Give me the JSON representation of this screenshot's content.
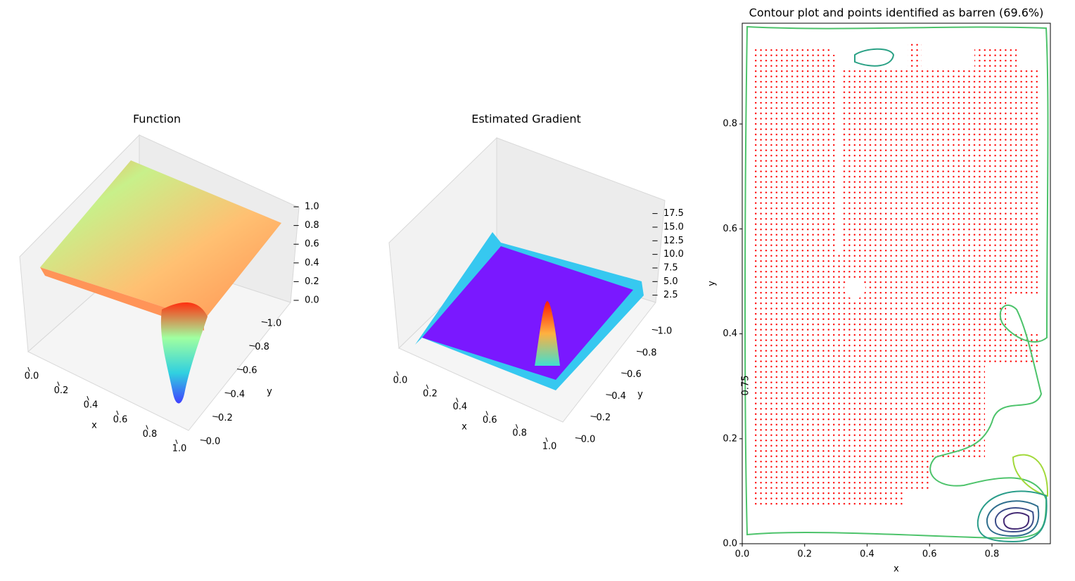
{
  "chart_data": [
    {
      "type": "surface",
      "title": "Function",
      "xlabel": "x",
      "ylabel": "y",
      "xlim": [
        0,
        1
      ],
      "ylim": [
        0,
        1
      ],
      "zlim": [
        0,
        1
      ],
      "xticks": [
        {
          "value": 0,
          "label": "0.0"
        },
        0.2,
        0.4,
        0.6,
        0.8,
        {
          "value": 1,
          "label": "1.0"
        }
      ],
      "yticks": [
        {
          "value": 0,
          "label": "0.0"
        },
        0.2,
        0.4,
        0.6,
        0.8,
        {
          "value": 1,
          "label": "1.0"
        }
      ],
      "zticks": [
        {
          "value": 0,
          "label": "0.0"
        },
        0.2,
        0.4,
        0.6,
        0.8,
        {
          "value": 1,
          "label": "1.0"
        }
      ]
    },
    {
      "type": "surface",
      "title": "Estimated Gradient",
      "xlabel": "x",
      "ylabel": "y",
      "xlim": [
        0,
        1
      ],
      "ylim": [
        0,
        1
      ],
      "zlim": [
        0,
        19
      ],
      "xticks": [
        {
          "value": 0,
          "label": "0.0"
        },
        0.2,
        0.4,
        0.6,
        0.8,
        {
          "value": 1,
          "label": "1.0"
        }
      ],
      "yticks": [
        {
          "value": 0,
          "label": "0.0"
        },
        0.2,
        0.4,
        0.6,
        0.8,
        {
          "value": 1,
          "label": "1.0"
        }
      ],
      "zticks": [
        2.5,
        {
          "value": 5,
          "label": "5.0"
        },
        7.5,
        {
          "value": 10,
          "label": "10.0"
        },
        12.5,
        {
          "value": 15,
          "label": "15.0"
        },
        17.5
      ]
    },
    {
      "type": "contour",
      "title": "Contour plot and points identified as barren (69.6%)",
      "xlabel": "x",
      "ylabel": "y",
      "xlim": [
        0,
        0.987
      ],
      "ylim": [
        0,
        0.992
      ],
      "xticks": [
        {
          "value": 0,
          "label": "0.0"
        },
        0.2,
        0.4,
        0.6,
        0.8
      ],
      "yticks": [
        {
          "value": 0,
          "label": "0.0"
        },
        0.2,
        0.4,
        0.6,
        0.8
      ],
      "annotations": [
        "0.75"
      ],
      "point_color": "#ff0000"
    }
  ]
}
